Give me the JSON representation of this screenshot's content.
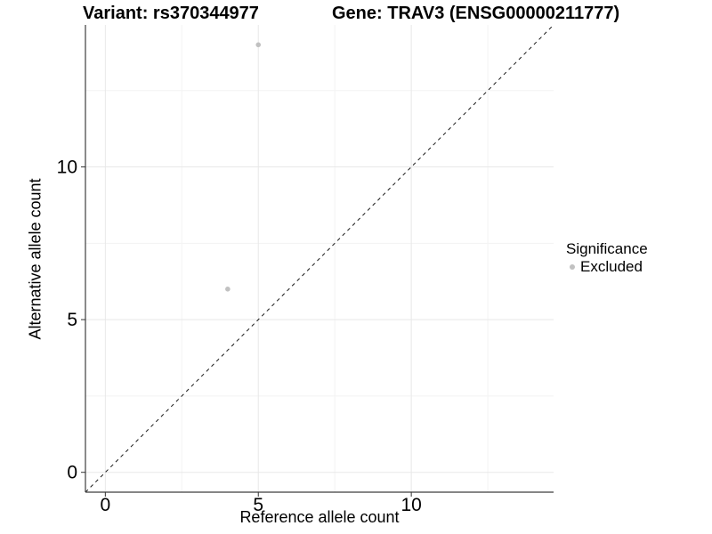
{
  "chart_data": {
    "type": "scatter",
    "title_left": "Variant: rs370344977",
    "title_right": "Gene: TRAV3 (ENSG00000211777)",
    "xlabel": "Reference allele count",
    "ylabel": "Alternative allele count",
    "xlim": [
      -0.65,
      14.65
    ],
    "ylim": [
      -0.65,
      14.65
    ],
    "x_ticks": [
      0,
      5,
      10
    ],
    "y_ticks": [
      0,
      5,
      10
    ],
    "x_minor_ticks": [
      2.5,
      7.5,
      12.5
    ],
    "y_minor_ticks": [
      2.5,
      7.5,
      12.5
    ],
    "grid": true,
    "series": [
      {
        "name": "Excluded",
        "color": "#c1c1c1",
        "points": [
          {
            "x": 5,
            "y": 14
          },
          {
            "x": 4,
            "y": 6
          }
        ]
      }
    ],
    "reference_line": {
      "type": "identity",
      "style": "dashed",
      "from": [
        -0.65,
        -0.65
      ],
      "to": [
        14.65,
        14.65
      ],
      "color": "#1a1a1a"
    },
    "legend": {
      "title": "Significance",
      "position": "right",
      "items": [
        {
          "label": "Excluded",
          "color": "#c1c1c1"
        }
      ]
    },
    "colors": {
      "background": "#ffffff",
      "grid_major": "#e8e8e8",
      "grid_minor": "#f3f3f3",
      "axis_line": "#3d3d3d",
      "tick_mark": "#333333",
      "tick_label": "#000000"
    }
  }
}
